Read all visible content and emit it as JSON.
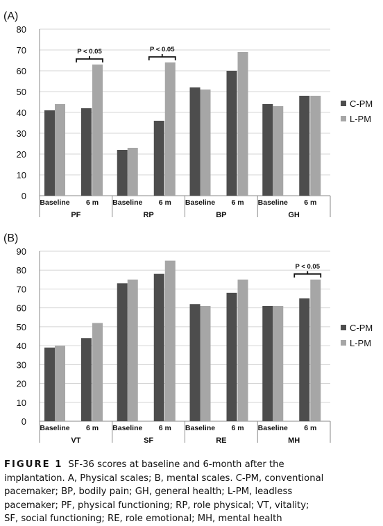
{
  "colors": {
    "c_pm": "#4d4d4d",
    "l_pm": "#a6a6a6",
    "grid": "#d4d4d4",
    "axis": "#8a8a8a"
  },
  "chart_data": [
    {
      "panel": "(A)",
      "type": "bar",
      "ylim": [
        0,
        80
      ],
      "yticks": [
        0,
        10,
        20,
        30,
        40,
        50,
        60,
        70,
        80
      ],
      "grid": true,
      "legend_position": "right",
      "groups": [
        "PF",
        "RP",
        "BP",
        "GH"
      ],
      "timepoints": [
        "Baseline",
        "6 m"
      ],
      "series": [
        {
          "name": "C-PM",
          "values": [
            41,
            42,
            22,
            36,
            52,
            60,
            44,
            48
          ]
        },
        {
          "name": "L-PM",
          "values": [
            44,
            63,
            23,
            64,
            51,
            69,
            43,
            48
          ]
        }
      ],
      "annotations": [
        {
          "group": "PF",
          "text": "P < 0.05"
        },
        {
          "group": "RP",
          "text": "P < 0.05"
        }
      ]
    },
    {
      "panel": "(B)",
      "type": "bar",
      "ylim": [
        0,
        90
      ],
      "yticks": [
        0,
        10,
        20,
        30,
        40,
        50,
        60,
        70,
        80,
        90
      ],
      "grid": true,
      "legend_position": "right",
      "groups": [
        "VT",
        "SF",
        "RE",
        "MH"
      ],
      "timepoints": [
        "Baseline",
        "6 m"
      ],
      "series": [
        {
          "name": "C-PM",
          "values": [
            39,
            44,
            73,
            78,
            62,
            68,
            61,
            65
          ]
        },
        {
          "name": "L-PM",
          "values": [
            40,
            52,
            75,
            85,
            61,
            75,
            61,
            75
          ]
        }
      ],
      "annotations": [
        {
          "group": "MH",
          "text": "P < 0.05"
        }
      ]
    }
  ],
  "caption": {
    "label": "FIGURE 1",
    "lines": [
      "SF-36 scores at baseline and 6-month after the",
      "implantation. A, Physical scales; B, mental scales. C-PM, conventional",
      "pacemaker; BP, bodily pain; GH, general health; L-PM, leadless",
      "pacemaker; PF, physical functioning; RP, role physical; VT, vitality;",
      "SF, social functioning; RE, role emotional; MH, mental health"
    ]
  }
}
